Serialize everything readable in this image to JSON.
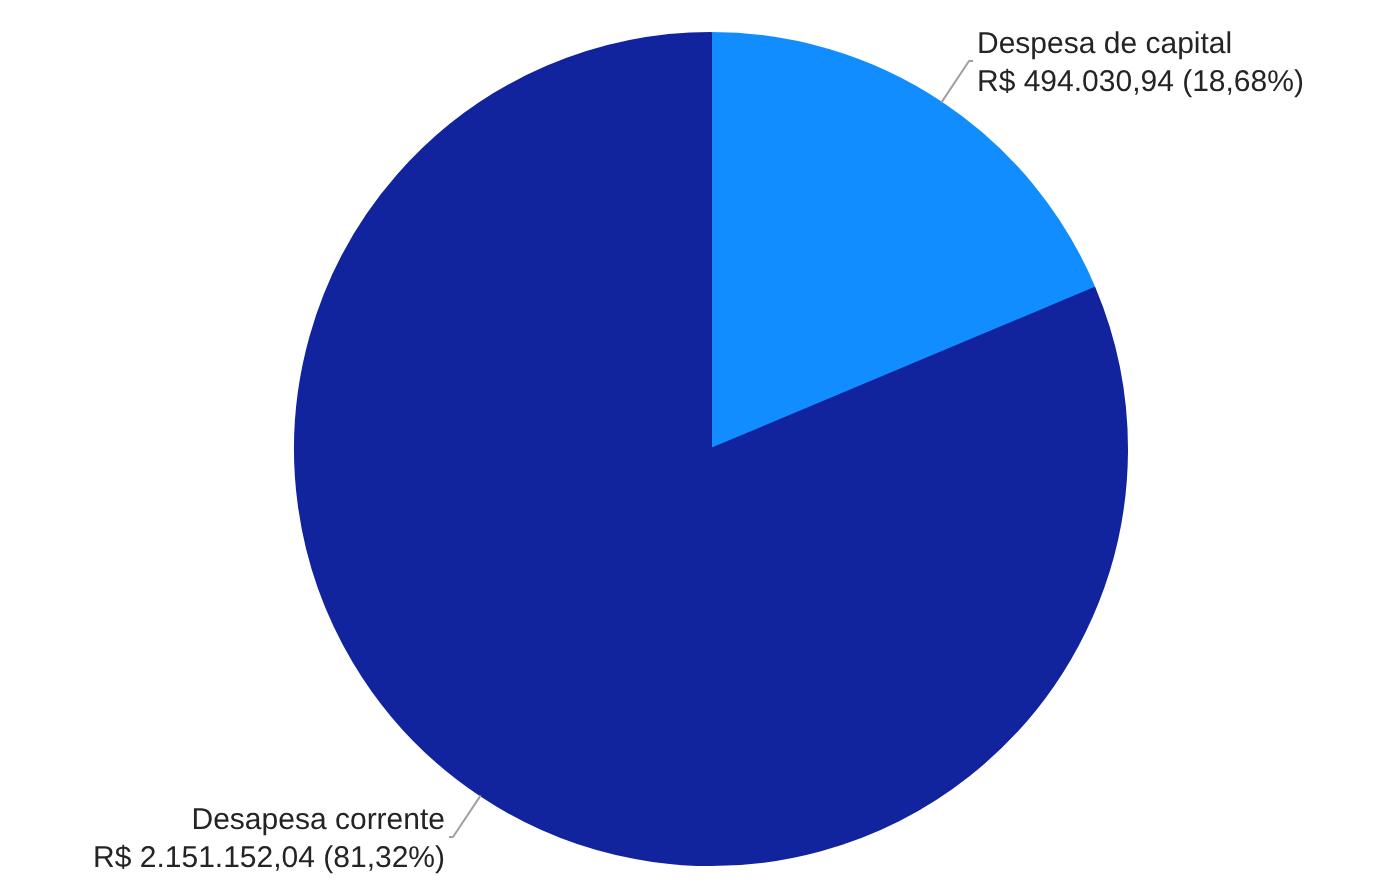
{
  "chart_data": {
    "type": "pie",
    "categories": [
      "Despesa de capital",
      "Desapesa corrente"
    ],
    "values": [
      494030.94,
      2151152.04
    ],
    "colors": [
      "#118dff",
      "#12239e"
    ],
    "value_labels": [
      "R$ 494.030,94 (18,68%)",
      "R$ 2.151.152,04 (81,32%)"
    ]
  }
}
